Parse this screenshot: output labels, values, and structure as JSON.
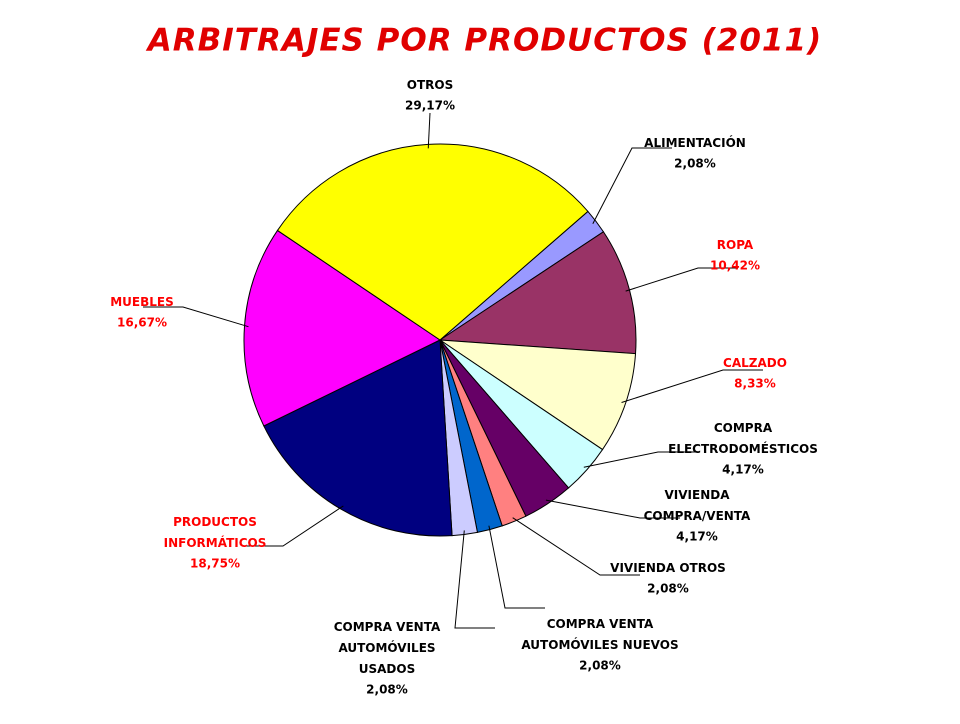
{
  "chart_data": {
    "type": "pie",
    "title": "ARBITRAJES POR PRODUCTOS (2011)",
    "categories": [
      "ALIMENTACIÓN",
      "ROPA",
      "CALZADO",
      "COMPRA\nELECTRODOMÉSTICOS",
      "VIVIENDA\nCOMPRA/VENTA",
      "VIVIENDA OTROS",
      "COMPRA VENTA\nAUTOMÓVILES NUEVOS",
      "COMPRA VENTA\nAUTOMÓVILES\nUSADOS",
      "PRODUCTOS\nINFORMÁTICOS",
      "MUEBLES",
      "OTROS"
    ],
    "values": [
      2.08,
      10.42,
      8.33,
      4.17,
      4.17,
      2.08,
      2.08,
      2.08,
      18.75,
      16.67,
      29.17
    ],
    "value_labels": [
      "2,08%",
      "10,42%",
      "8,33%",
      "4,17%",
      "4,17%",
      "2,08%",
      "2,08%",
      "2,08%",
      "18,75%",
      "16,67%",
      "29,17%"
    ],
    "colors": [
      "#9999ff",
      "#993366",
      "#ffffcc",
      "#ccffff",
      "#660066",
      "#ff8080",
      "#0066cc",
      "#ccccff",
      "#000080",
      "#ff00ff",
      "#ffff00"
    ],
    "label_colors": [
      "#000000",
      "#ff0000",
      "#ff0000",
      "#000000",
      "#000000",
      "#000000",
      "#000000",
      "#000000",
      "#ff0000",
      "#ff0000",
      "#000000"
    ]
  }
}
